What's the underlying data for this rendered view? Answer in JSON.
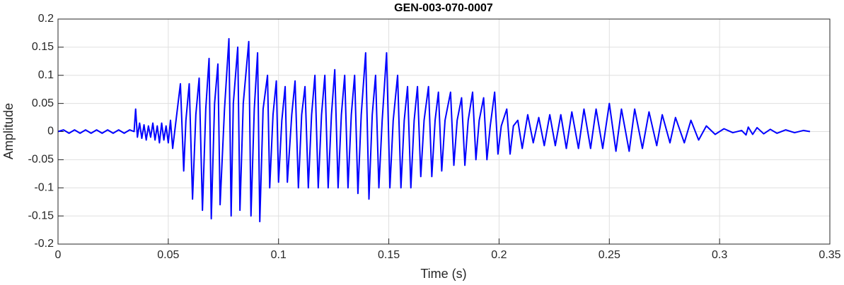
{
  "chart_data": {
    "type": "line",
    "title": "GEN-003-070-0007",
    "x_label": "Time (s)",
    "y_label": "Amplitude",
    "xlim": [
      0,
      0.35
    ],
    "xticks": [
      0,
      0.05,
      0.1,
      0.15,
      0.2,
      0.25,
      0.3,
      0.35
    ],
    "ylim": [
      -0.2,
      0.2
    ],
    "yticks": [
      -0.2,
      -0.15,
      -0.1,
      -0.05,
      0,
      0.05,
      0.1,
      0.15,
      0.2
    ],
    "grid": true,
    "x": [
      0,
      0.0025,
      0.005,
      0.0075,
      0.01,
      0.0125,
      0.015,
      0.0175,
      0.02,
      0.0225,
      0.025,
      0.0275,
      0.03,
      0.0325,
      0.0345,
      0.0352,
      0.036,
      0.037,
      0.038,
      0.039,
      0.04,
      0.041,
      0.042,
      0.043,
      0.044,
      0.045,
      0.046,
      0.047,
      0.048,
      0.049,
      0.05,
      0.051,
      0.052,
      0.0555,
      0.057,
      0.058,
      0.0595,
      0.061,
      0.0625,
      0.064,
      0.0655,
      0.067,
      0.0685,
      0.0695,
      0.071,
      0.0725,
      0.0735,
      0.0755,
      0.0775,
      0.0785,
      0.0795,
      0.0815,
      0.0825,
      0.084,
      0.0865,
      0.0875,
      0.089,
      0.0905,
      0.0915,
      0.093,
      0.095,
      0.096,
      0.0975,
      0.099,
      0.1,
      0.1015,
      0.103,
      0.104,
      0.106,
      0.1075,
      0.109,
      0.1105,
      0.112,
      0.1135,
      0.115,
      0.1165,
      0.118,
      0.1195,
      0.121,
      0.1225,
      0.124,
      0.1255,
      0.127,
      0.1285,
      0.13,
      0.1315,
      0.133,
      0.1345,
      0.136,
      0.1375,
      0.1395,
      0.141,
      0.1425,
      0.144,
      0.1455,
      0.147,
      0.149,
      0.1505,
      0.152,
      0.154,
      0.1555,
      0.157,
      0.1585,
      0.16,
      0.1615,
      0.163,
      0.1645,
      0.166,
      0.168,
      0.1695,
      0.171,
      0.1725,
      0.174,
      0.1755,
      0.178,
      0.1795,
      0.181,
      0.183,
      0.1845,
      0.186,
      0.188,
      0.1895,
      0.191,
      0.193,
      0.1945,
      0.196,
      0.198,
      0.1995,
      0.201,
      0.2035,
      0.205,
      0.2065,
      0.2085,
      0.2105,
      0.213,
      0.2155,
      0.218,
      0.2205,
      0.223,
      0.2255,
      0.228,
      0.2305,
      0.233,
      0.236,
      0.2385,
      0.2415,
      0.244,
      0.247,
      0.25,
      0.253,
      0.2555,
      0.259,
      0.2615,
      0.265,
      0.268,
      0.2715,
      0.274,
      0.2775,
      0.28,
      0.284,
      0.287,
      0.2905,
      0.294,
      0.298,
      0.302,
      0.306,
      0.31,
      0.312,
      0.313,
      0.315,
      0.317,
      0.32,
      0.323,
      0.326,
      0.33,
      0.334,
      0.338,
      0.341
    ],
    "series": [
      {
        "color": "#0000ff",
        "values": [
          0,
          0.003,
          -0.003,
          0.003,
          -0.003,
          0.003,
          -0.003,
          0.003,
          -0.003,
          0.003,
          -0.003,
          0.003,
          -0.003,
          0.003,
          0,
          0.04,
          -0.01,
          0.015,
          -0.012,
          0.012,
          -0.015,
          0.01,
          -0.01,
          0.015,
          -0.015,
          0.01,
          -0.02,
          0.015,
          -0.015,
          0.01,
          -0.02,
          0.02,
          -0.03,
          0.085,
          -0.07,
          0.02,
          0.085,
          -0.12,
          0.03,
          0.095,
          -0.14,
          0.04,
          0.13,
          -0.155,
          0.05,
          0.12,
          -0.13,
          0.04,
          0.165,
          -0.15,
          0.05,
          0.15,
          -0.14,
          0.05,
          0.16,
          -0.15,
          0.04,
          0.14,
          -0.16,
          0.04,
          0.1,
          -0.1,
          0.03,
          0.09,
          -0.09,
          0.02,
          0.08,
          -0.09,
          0.03,
          0.09,
          -0.1,
          0.03,
          0.08,
          -0.1,
          0.03,
          0.1,
          -0.1,
          0.03,
          0.1,
          -0.1,
          0.03,
          0.11,
          -0.1,
          0.03,
          0.1,
          -0.1,
          0.03,
          0.1,
          -0.11,
          0.03,
          0.14,
          -0.12,
          0.03,
          0.1,
          -0.1,
          0.02,
          0.14,
          -0.1,
          0.02,
          0.1,
          -0.1,
          0.02,
          0.08,
          -0.1,
          0.02,
          0.08,
          -0.08,
          0.02,
          0.08,
          -0.08,
          0.02,
          0.07,
          -0.07,
          0.02,
          0.07,
          -0.06,
          0.02,
          0.06,
          -0.06,
          0.02,
          0.07,
          -0.05,
          0.02,
          0.06,
          -0.05,
          0.01,
          0.07,
          -0.04,
          0.01,
          0.04,
          -0.04,
          0.01,
          0.02,
          -0.03,
          0.03,
          -0.02,
          0.025,
          -0.025,
          0.03,
          -0.025,
          0.03,
          -0.03,
          0.035,
          -0.03,
          0.04,
          -0.03,
          0.04,
          -0.03,
          0.05,
          -0.035,
          0.04,
          -0.035,
          0.04,
          -0.03,
          0.035,
          -0.025,
          0.03,
          -0.02,
          0.025,
          -0.02,
          0.02,
          -0.015,
          0.01,
          -0.005,
          0.005,
          -0.002,
          0.002,
          -0.006,
          0.008,
          -0.005,
          0.007,
          -0.004,
          0.004,
          -0.003,
          0.003,
          -0.002,
          0.002,
          0
        ]
      }
    ]
  }
}
